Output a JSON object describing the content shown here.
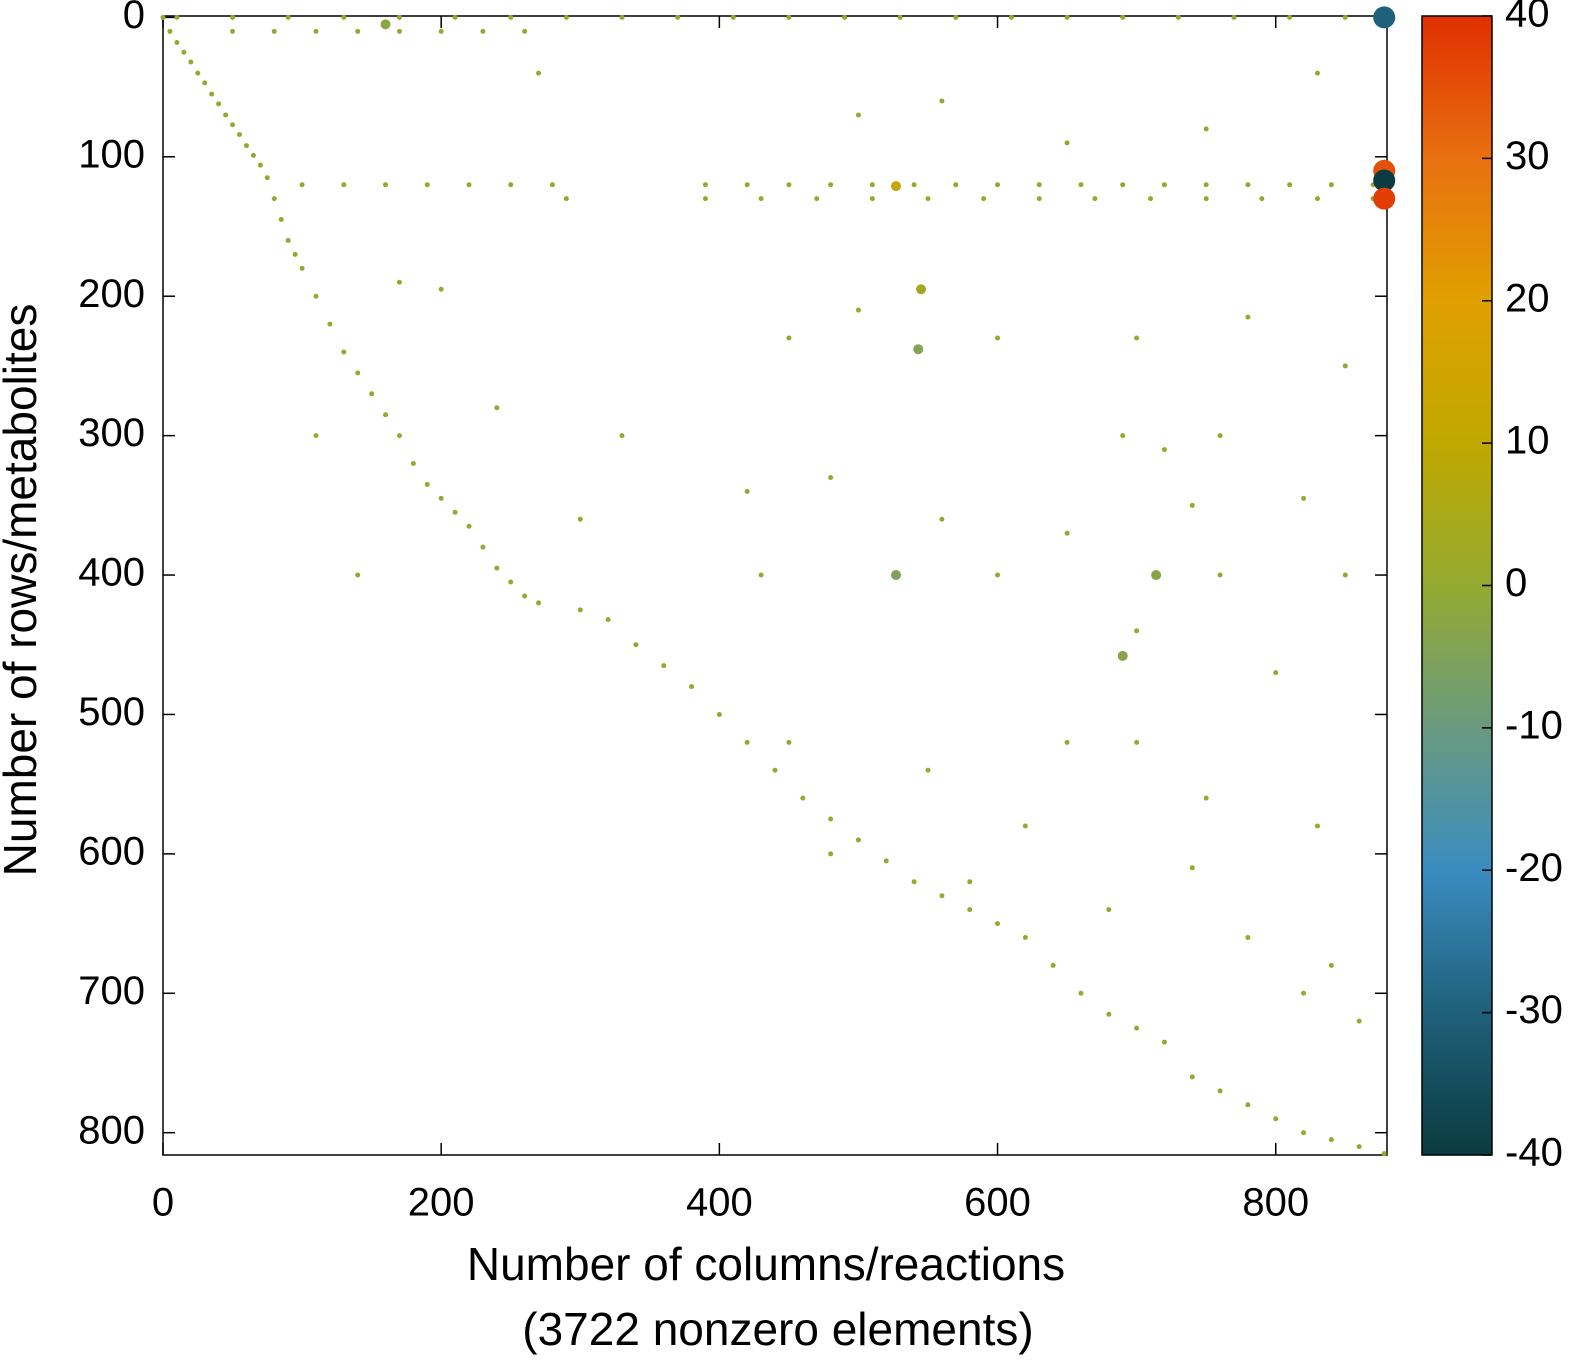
{
  "chart_data": {
    "type": "scatter",
    "xlabel": [
      "Number of columns/reactions",
      "(3722 nonzero elements)"
    ],
    "ylabel": "Number of rows/metabolites",
    "xlim": [
      0,
      880
    ],
    "xticks": [
      0,
      200,
      400,
      600,
      800
    ],
    "ylim": [
      -1,
      816
    ],
    "yticks": [
      0,
      100,
      200,
      300,
      400,
      500,
      600,
      700,
      800
    ],
    "y_reversed": true,
    "clim": [
      -40,
      40
    ],
    "cticks": [
      40,
      30,
      20,
      10,
      0,
      -10,
      -20,
      -30,
      -40
    ],
    "colormap": [
      "#0b3b40",
      "#1f607a",
      "#3a8cc0",
      "#6a9a80",
      "#93aa30",
      "#c0a800",
      "#e0a000",
      "#e87010",
      "#e03000"
    ],
    "series": [
      {
        "marker_size": 2.5,
        "x": [
          0,
          5,
          10,
          15,
          20,
          25,
          30,
          35,
          40,
          45,
          50,
          55,
          60,
          65,
          70,
          75,
          80,
          85,
          90,
          95,
          100,
          110,
          120,
          130,
          140,
          150,
          160,
          170,
          180,
          190,
          200,
          210,
          220,
          230,
          240,
          250,
          260,
          270,
          300,
          320,
          340,
          360,
          380,
          400,
          420,
          440,
          460,
          480,
          500,
          520,
          540,
          560,
          580,
          600,
          620,
          640,
          660,
          680,
          700,
          720,
          740,
          760,
          780,
          800,
          820,
          840,
          860,
          878,
          10,
          50,
          90,
          130,
          170,
          210,
          250,
          290,
          330,
          370,
          410,
          450,
          490,
          530,
          570,
          610,
          650,
          690,
          730,
          770,
          810,
          850,
          50,
          80,
          110,
          140,
          170,
          200,
          230,
          260,
          100,
          130,
          160,
          190,
          220,
          250,
          280,
          390,
          420,
          450,
          480,
          510,
          540,
          570,
          600,
          630,
          660,
          690,
          720,
          750,
          780,
          810,
          840,
          870,
          390,
          430,
          470,
          510,
          550,
          590,
          630,
          670,
          710,
          750,
          790,
          830,
          870,
          170,
          200,
          450,
          500,
          600,
          700,
          780,
          850,
          420,
          480,
          560,
          650,
          740,
          820,
          430,
          600,
          760,
          850,
          700,
          800,
          450,
          550,
          650,
          750,
          830,
          480,
          580,
          680,
          780,
          840,
          500,
          560,
          650,
          750,
          830,
          270,
          290,
          330,
          140,
          110,
          240,
          300,
          690,
          720,
          760,
          700,
          820,
          860,
          740,
          620
        ],
        "values": [
          0,
          10,
          18,
          25,
          32,
          40,
          47,
          55,
          62,
          70,
          77,
          84,
          92,
          99,
          106,
          115,
          130,
          145,
          160,
          170,
          180,
          200,
          220,
          240,
          255,
          270,
          285,
          300,
          320,
          335,
          345,
          355,
          365,
          380,
          395,
          405,
          415,
          420,
          425,
          432,
          450,
          465,
          480,
          500,
          520,
          540,
          560,
          575,
          590,
          605,
          620,
          630,
          640,
          650,
          660,
          680,
          700,
          715,
          725,
          735,
          760,
          770,
          780,
          790,
          800,
          805,
          810,
          815,
          0,
          0,
          0,
          0,
          0,
          0,
          0,
          0,
          0,
          0,
          0,
          0,
          0,
          0,
          0,
          0,
          0,
          0,
          0,
          0,
          0,
          0,
          10,
          10,
          10,
          10,
          10,
          10,
          10,
          10,
          120,
          120,
          120,
          120,
          120,
          120,
          120,
          120,
          120,
          120,
          120,
          120,
          120,
          120,
          120,
          120,
          120,
          120,
          120,
          120,
          120,
          120,
          120,
          120,
          130,
          130,
          130,
          130,
          130,
          130,
          130,
          130,
          130,
          130,
          130,
          130,
          130,
          190,
          195,
          230,
          210,
          230,
          230,
          215,
          250,
          340,
          330,
          360,
          370,
          350,
          345,
          400,
          400,
          400,
          400,
          440,
          470,
          520,
          540,
          520,
          560,
          580,
          600,
          620,
          640,
          660,
          680,
          70,
          60,
          90,
          80,
          40,
          40,
          130,
          300,
          400,
          300,
          280,
          360,
          300,
          310,
          300,
          520,
          700,
          720,
          610,
          580
        ],
        "z": [
          0,
          0,
          0,
          0,
          0,
          0,
          0,
          0,
          0,
          0,
          0,
          0,
          0,
          0,
          0,
          0,
          0,
          0,
          0,
          0,
          0,
          0,
          0,
          0,
          0,
          0,
          0,
          0,
          0,
          0,
          0,
          0,
          0,
          0,
          0,
          0,
          0,
          0,
          0,
          0,
          0,
          0,
          0,
          0,
          0,
          0,
          0,
          0,
          0,
          0,
          0,
          0,
          0,
          0,
          0,
          0,
          0,
          0,
          0,
          0,
          0,
          0,
          0,
          0,
          0,
          0,
          0,
          0,
          0,
          0,
          0,
          0,
          0,
          0,
          0,
          0,
          0,
          0,
          0,
          0,
          0,
          0,
          0,
          0,
          0,
          0,
          0,
          0,
          0,
          0,
          0,
          0,
          0,
          0,
          0,
          0,
          0,
          0,
          0,
          0,
          0,
          0,
          0,
          0,
          0,
          0,
          0,
          0,
          0,
          0,
          0,
          0,
          0,
          0,
          0,
          0,
          0,
          0,
          0,
          0,
          0,
          0,
          0,
          0,
          0,
          0,
          0,
          0,
          0,
          0,
          0,
          0,
          0,
          0,
          0,
          0,
          0,
          0,
          0,
          0,
          0,
          0,
          0,
          0,
          0,
          0,
          0,
          0,
          0,
          0,
          0,
          0,
          0,
          0,
          0,
          0,
          0,
          0,
          0,
          0,
          0,
          0,
          0,
          0,
          0,
          0,
          0,
          0,
          0,
          0,
          0,
          0,
          0,
          0,
          0,
          0,
          0,
          0,
          0,
          0,
          0,
          0,
          0,
          0,
          0
        ]
      },
      {
        "marker_size": 11,
        "x": [
          878,
          878,
          878,
          878
        ],
        "values": [
          0,
          110,
          117,
          130
        ],
        "z": [
          -30,
          35,
          -40,
          38
        ]
      },
      {
        "marker_size": 5,
        "x": [
          527,
          527,
          714,
          690,
          160,
          545,
          543
        ],
        "values": [
          121,
          400,
          400,
          458,
          5,
          195,
          238
        ],
        "z": [
          12,
          -5,
          -3,
          -3,
          -2,
          3,
          -4
        ]
      }
    ]
  }
}
